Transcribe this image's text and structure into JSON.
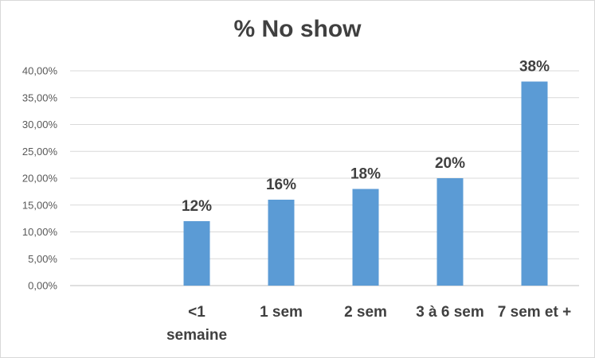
{
  "chart_data": {
    "type": "bar",
    "title": "% No show",
    "categories": [
      [
        "<1",
        "semaine"
      ],
      [
        "1 sem"
      ],
      [
        "2 sem"
      ],
      [
        "3 à 6 sem"
      ],
      [
        "7 sem et +"
      ]
    ],
    "values": [
      12,
      16,
      18,
      20,
      38
    ],
    "data_labels": [
      "12%",
      "16%",
      "18%",
      "20%",
      "38%"
    ],
    "yticks": [
      "0,00%",
      "5,00%",
      "10,00%",
      "15,00%",
      "20,00%",
      "25,00%",
      "30,00%",
      "35,00%",
      "40,00%"
    ],
    "ylim": [
      0,
      40
    ],
    "grid": true,
    "bar_color": "#5b9bd5",
    "xlabel": "",
    "ylabel": ""
  }
}
